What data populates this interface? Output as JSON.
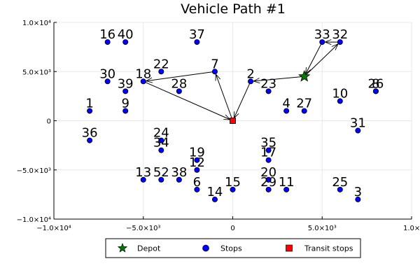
{
  "chart_data": {
    "type": "scatter",
    "title": "Vehicle Path #1",
    "xlim": [
      -10000,
      10000
    ],
    "ylim": [
      -10000,
      10000
    ],
    "x_ticks": [
      {
        "value": -10000,
        "label": "−1.0×10⁴"
      },
      {
        "value": -5000,
        "label": "−5.0×10³"
      },
      {
        "value": 0,
        "label": "0"
      },
      {
        "value": 5000,
        "label": "5.0×10³"
      },
      {
        "value": 10000,
        "label": "1.0×10⁴"
      }
    ],
    "y_ticks": [
      {
        "value": 10000,
        "label": "1.0×10⁴"
      },
      {
        "value": 5000,
        "label": "5.0×10³"
      },
      {
        "value": 0,
        "label": "0"
      },
      {
        "value": -5000,
        "label": "−5.0×10³"
      },
      {
        "value": -10000,
        "label": "−1.0×10⁴"
      }
    ],
    "grid": true,
    "legend_position": "bottom",
    "legend": [
      {
        "label": "Depot",
        "marker": "star",
        "color": "#007a00"
      },
      {
        "label": "Stops",
        "marker": "circle",
        "color": "#0000ff"
      },
      {
        "label": "Transit stops",
        "marker": "square",
        "color": "#ff0000"
      }
    ],
    "depot": {
      "x": 4000,
      "y": 4500
    },
    "transit_stops": [
      {
        "x": 0,
        "y": 0
      }
    ],
    "stops": [
      {
        "id": "1",
        "x": -8000,
        "y": 1000
      },
      {
        "id": "2",
        "x": 1000,
        "y": 4000
      },
      {
        "id": "3",
        "x": 7000,
        "y": -8000
      },
      {
        "id": "4",
        "x": 3000,
        "y": 1000
      },
      {
        "id": "6",
        "x": -2000,
        "y": -7000
      },
      {
        "id": "7",
        "x": -1000,
        "y": 5000
      },
      {
        "id": "8",
        "x": 8000,
        "y": 3000
      },
      {
        "id": "9",
        "x": -6000,
        "y": 1000
      },
      {
        "id": "10",
        "x": 6000,
        "y": 2000
      },
      {
        "id": "11",
        "x": 3000,
        "y": -7000
      },
      {
        "id": "12",
        "x": -2000,
        "y": -5000
      },
      {
        "id": "13",
        "x": -5000,
        "y": -6000
      },
      {
        "id": "14",
        "x": -1000,
        "y": -8000
      },
      {
        "id": "15",
        "x": 0,
        "y": -7000
      },
      {
        "id": "16",
        "x": -7000,
        "y": 8000
      },
      {
        "id": "17",
        "x": 2000,
        "y": -4000
      },
      {
        "id": "18",
        "x": -5000,
        "y": 4000
      },
      {
        "id": "19",
        "x": -2000,
        "y": -4000
      },
      {
        "id": "20",
        "x": 2000,
        "y": -6000
      },
      {
        "id": "22",
        "x": -4000,
        "y": 5000
      },
      {
        "id": "23",
        "x": 2000,
        "y": 3000
      },
      {
        "id": "24",
        "x": -4000,
        "y": -2000
      },
      {
        "id": "25",
        "x": 6000,
        "y": -7000
      },
      {
        "id": "26",
        "x": 8000,
        "y": 3000
      },
      {
        "id": "27",
        "x": 4000,
        "y": 1000
      },
      {
        "id": "28",
        "x": -3000,
        "y": 3000
      },
      {
        "id": "29",
        "x": 2000,
        "y": -7000
      },
      {
        "id": "30",
        "x": -7000,
        "y": 4000
      },
      {
        "id": "31",
        "x": 7000,
        "y": -1000
      },
      {
        "id": "32",
        "x": 6000,
        "y": 8000
      },
      {
        "id": "33",
        "x": 5000,
        "y": 8000
      },
      {
        "id": "34",
        "x": -4000,
        "y": -3000
      },
      {
        "id": "35",
        "x": 2000,
        "y": -3000
      },
      {
        "id": "36",
        "x": -8000,
        "y": -2000
      },
      {
        "id": "37",
        "x": -2000,
        "y": 8000
      },
      {
        "id": "38",
        "x": -3000,
        "y": -6000
      },
      {
        "id": "39",
        "x": -6000,
        "y": 3000
      },
      {
        "id": "40",
        "x": -6000,
        "y": 8000
      },
      {
        "id": "52",
        "x": -4000,
        "y": -6000
      }
    ],
    "path": [
      {
        "x": 4000,
        "y": 4500
      },
      {
        "x": 6000,
        "y": 8000
      },
      {
        "x": 5000,
        "y": 8000
      },
      {
        "x": 4000,
        "y": 4500
      },
      {
        "x": 1000,
        "y": 4000
      },
      {
        "x": 0,
        "y": 0
      },
      {
        "x": -1000,
        "y": 5000
      },
      {
        "x": -5000,
        "y": 4000
      },
      {
        "x": 0,
        "y": 0
      }
    ]
  }
}
